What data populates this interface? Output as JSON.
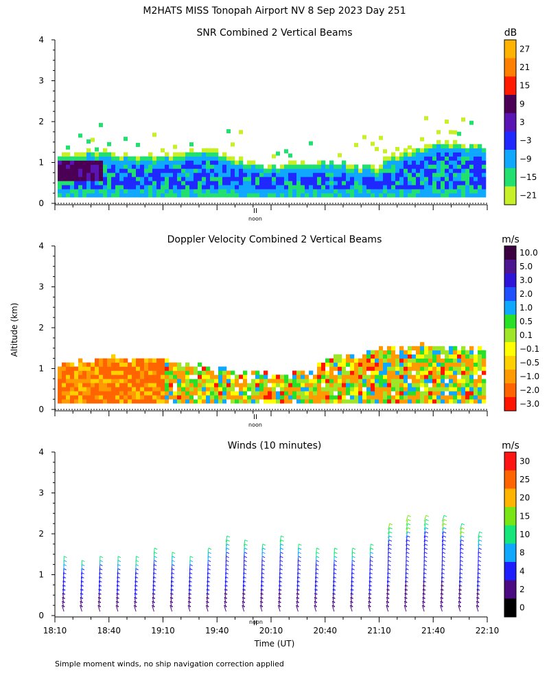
{
  "header": {
    "title": "M2HATS MISS Tonopah Airport NV   8 Sep 2023 Day 251",
    "ylabel": "Altitude (km)",
    "xlabel": "Time (UT)",
    "noon_label": "noon",
    "footnote": "Simple moment winds, no ship navigation correction applied"
  },
  "chart_data": [
    {
      "type": "heatmap",
      "title": "SNR Combined 2 Vertical Beams",
      "units": "dB",
      "yticks": [
        "0",
        "1",
        "2",
        "3",
        "4"
      ],
      "ylim": [
        0,
        4
      ],
      "colorbar": {
        "labels": [
          "27",
          "21",
          "15",
          "9",
          "3",
          "−3",
          "−9",
          "−15",
          "−21"
        ],
        "colors": [
          "#ffb300",
          "#ff7f00",
          "#ff1a00",
          "#4b0055",
          "#5a14b4",
          "#1e28ff",
          "#10a8ff",
          "#22e070",
          "#c8f028"
        ]
      }
    },
    {
      "type": "heatmap",
      "title": "Doppler Velocity Combined 2 Vertical Beams",
      "units": "m/s",
      "yticks": [
        "0",
        "1",
        "2",
        "3",
        "4"
      ],
      "ylim": [
        0,
        4
      ],
      "colorbar": {
        "labels": [
          "10.0",
          "5.0",
          "3.0",
          "2.0",
          "1.0",
          "0.5",
          "0.1",
          "−0.1",
          "−0.5",
          "−1.0",
          "−2.0",
          "−3.0"
        ],
        "colors": [
          "#3a0040",
          "#4b1690",
          "#2d14d8",
          "#1e50ff",
          "#10a8ff",
          "#28e028",
          "#a0e628",
          "#ffff00",
          "#ffd000",
          "#ff9a00",
          "#ff6400",
          "#ff1400"
        ]
      }
    },
    {
      "type": "scatter",
      "title": "Winds (10 minutes)",
      "units": "m/s",
      "yticks": [
        "0",
        "1",
        "2",
        "3",
        "4"
      ],
      "ylim": [
        0,
        4
      ],
      "xticks": [
        "18:10",
        "18:40",
        "19:10",
        "19:40",
        "20:10",
        "20:40",
        "21:10",
        "21:40",
        "22:10"
      ],
      "colorbar": {
        "labels": [
          "30",
          "25",
          "20",
          "15",
          "10",
          "8",
          "4",
          "2",
          "0"
        ],
        "colors": [
          "#ff1414",
          "#ff6400",
          "#ffb400",
          "#78e614",
          "#14e67a",
          "#10a8ff",
          "#1e1eff",
          "#4b0a82",
          "#000000"
        ]
      },
      "x": [
        "18:10",
        "18:20",
        "18:30",
        "18:40",
        "18:50",
        "19:00",
        "19:10",
        "19:20",
        "19:30",
        "19:40",
        "19:50",
        "20:00",
        "20:10",
        "20:20",
        "20:30",
        "20:40",
        "20:50",
        "21:00",
        "21:10",
        "21:20",
        "21:30",
        "21:40",
        "21:50",
        "22:00"
      ],
      "top_altitude_km": [
        1.35,
        1.25,
        1.4,
        1.35,
        1.3,
        1.55,
        1.45,
        1.4,
        1.6,
        1.85,
        1.75,
        1.7,
        1.85,
        1.7,
        1.55,
        1.55,
        1.55,
        1.65,
        2.15,
        2.35,
        2.4,
        2.4,
        2.2,
        2.0
      ]
    }
  ]
}
